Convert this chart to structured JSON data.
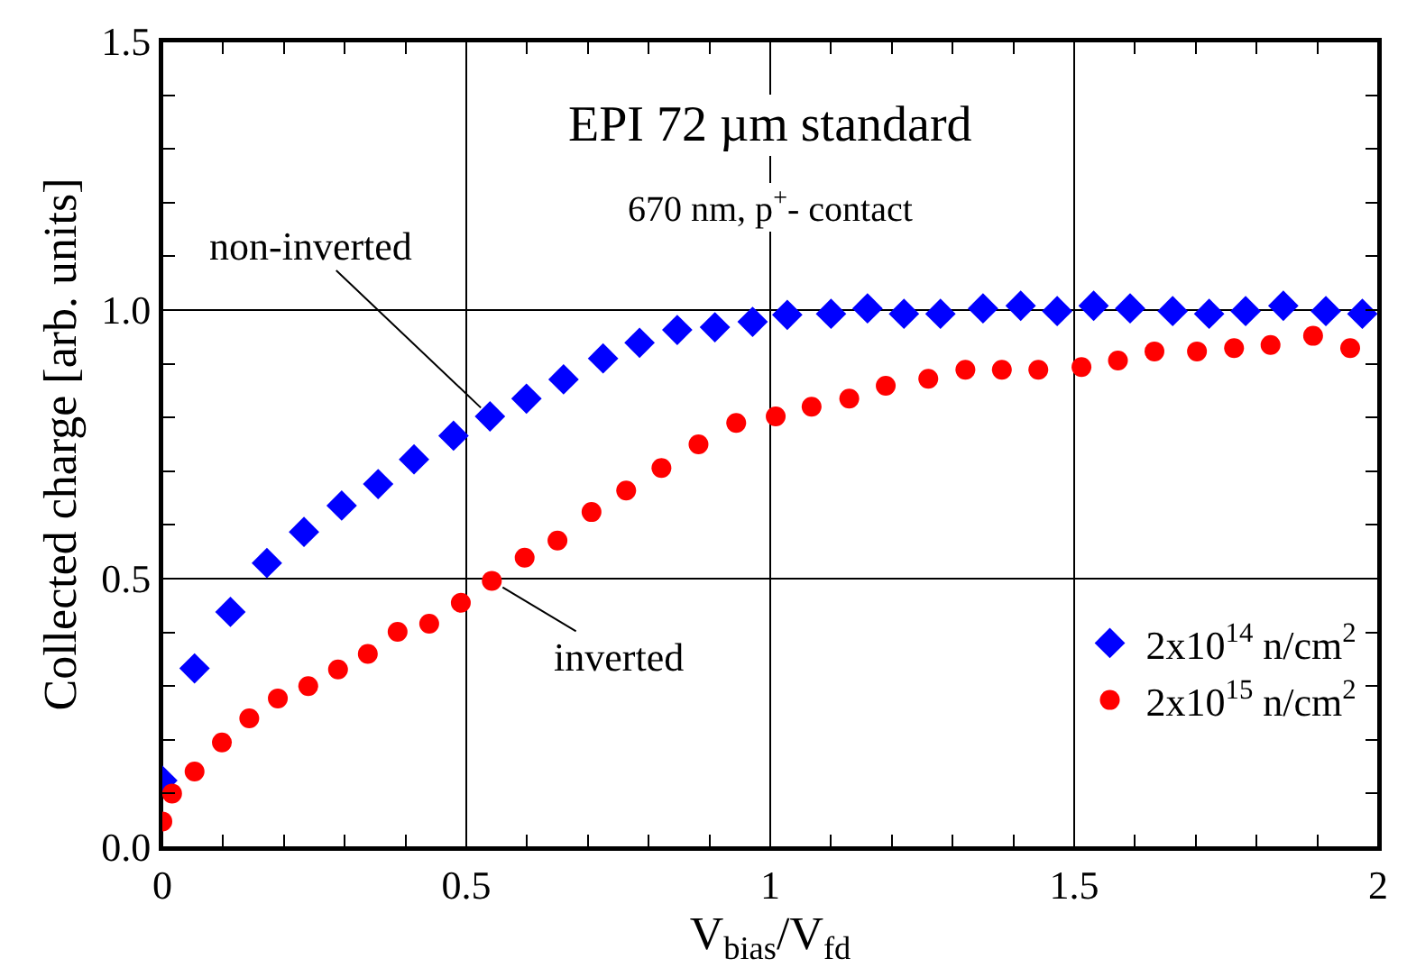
{
  "chart_data": {
    "type": "scatter",
    "title": "EPI 72 µm standard",
    "subtitle": "670 nm, p$^{+}$- contact",
    "xlabel": "V$_{bias}$/V$_{fd}$",
    "ylabel": "Collected charge [arb. units]",
    "xlim": [
      0,
      2
    ],
    "ylim": [
      0,
      1.5
    ],
    "xticks": [
      0,
      {
        "value": 0.1,
        "label": null
      },
      {
        "value": 0.2,
        "label": null
      },
      {
        "value": 0.3,
        "label": null
      },
      {
        "value": 0.4,
        "label": null
      },
      0.5,
      {
        "value": 0.6,
        "label": null
      },
      {
        "value": 0.7,
        "label": null
      },
      {
        "value": 0.8,
        "label": null
      },
      {
        "value": 0.9,
        "label": null
      },
      1,
      {
        "value": 1.1,
        "label": null
      },
      {
        "value": 1.2,
        "label": null
      },
      {
        "value": 1.3,
        "label": null
      },
      {
        "value": 1.4,
        "label": null
      },
      1.5,
      {
        "value": 1.6,
        "label": null
      },
      {
        "value": 1.7,
        "label": null
      },
      {
        "value": 1.8,
        "label": null
      },
      {
        "value": 1.9,
        "label": null
      },
      2
    ],
    "yticks": [
      {
        "value": 0,
        "label": "0.0"
      },
      {
        "value": 0.1,
        "label": null
      },
      {
        "value": 0.2,
        "label": null
      },
      {
        "value": 0.3,
        "label": null
      },
      {
        "value": 0.4,
        "label": null
      },
      {
        "value": 0.5,
        "label": "0.5"
      },
      {
        "value": 0.6,
        "label": null
      },
      {
        "value": 0.7,
        "label": null
      },
      {
        "value": 0.8,
        "label": null
      },
      {
        "value": 0.9,
        "label": null
      },
      {
        "value": 1.0,
        "label": "1.0"
      },
      {
        "value": 1.1,
        "label": null
      },
      {
        "value": 1.2,
        "label": null
      },
      {
        "value": 1.3,
        "label": null
      },
      {
        "value": 1.4,
        "label": null
      },
      {
        "value": 1.5,
        "label": "1.5"
      }
    ],
    "grid": true,
    "legend": "bottom right",
    "series": [
      {
        "name": "2x10$^{14}$ n/cm$^{2}$",
        "color": "#0000ff",
        "marker": "diamond",
        "x": [
          0,
          0.053,
          0.112,
          0.172,
          0.233,
          0.295,
          0.355,
          0.414,
          0.479,
          0.539,
          0.599,
          0.66,
          0.725,
          0.785,
          0.847,
          0.909,
          0.971,
          1.028,
          1.1,
          1.16,
          1.22,
          1.28,
          1.35,
          1.412,
          1.472,
          1.532,
          1.592,
          1.662,
          1.722,
          1.782,
          1.844,
          1.914,
          1.974
        ],
        "values": [
          0.124,
          0.333,
          0.438,
          0.529,
          0.587,
          0.636,
          0.676,
          0.722,
          0.766,
          0.802,
          0.835,
          0.871,
          0.91,
          0.939,
          0.963,
          0.968,
          0.978,
          0.991,
          0.993,
          1.003,
          0.993,
          0.993,
          1.003,
          1.008,
          0.998,
          1.008,
          1.003,
          0.998,
          0.993,
          0.998,
          1.008,
          0.998,
          0.993
        ]
      },
      {
        "name": "2x10$^{15}$ n/cm$^{2}$",
        "color": "#ff0000",
        "marker": "circle",
        "x": [
          0,
          0.016,
          0.053,
          0.098,
          0.143,
          0.19,
          0.24,
          0.289,
          0.338,
          0.387,
          0.439,
          0.491,
          0.542,
          0.596,
          0.65,
          0.706,
          0.763,
          0.821,
          0.882,
          0.944,
          1.009,
          1.068,
          1.13,
          1.19,
          1.26,
          1.321,
          1.381,
          1.441,
          1.512,
          1.572,
          1.632,
          1.702,
          1.763,
          1.823,
          1.893,
          1.954
        ],
        "values": [
          0.048,
          0.1,
          0.141,
          0.195,
          0.24,
          0.277,
          0.3,
          0.331,
          0.36,
          0.401,
          0.416,
          0.455,
          0.496,
          0.539,
          0.571,
          0.624,
          0.664,
          0.706,
          0.75,
          0.79,
          0.802,
          0.82,
          0.835,
          0.859,
          0.872,
          0.889,
          0.889,
          0.889,
          0.894,
          0.906,
          0.923,
          0.923,
          0.929,
          0.935,
          0.952,
          0.929
        ]
      }
    ],
    "annotations": [
      {
        "text": "non-inverted",
        "x": 0.539,
        "y": 0.802
      },
      {
        "text": "inverted",
        "x": 0.542,
        "y": 0.496
      }
    ]
  }
}
